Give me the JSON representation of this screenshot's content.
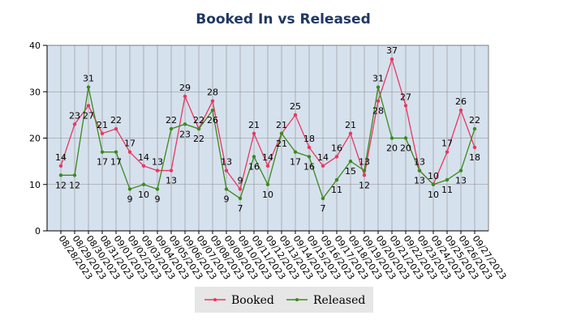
{
  "chart_data": {
    "type": "line",
    "title": "Booked In vs Released",
    "xlabel": "",
    "ylabel": "",
    "ylim": [
      0,
      40
    ],
    "yticks": [
      0,
      10,
      20,
      30,
      40
    ],
    "grid": true,
    "legend_position": "bottom",
    "categories": [
      "08/28/2023",
      "08/29/2023",
      "08/30/2023",
      "08/31/2023",
      "09/01/2023",
      "09/02/2023",
      "09/03/2023",
      "09/04/2023",
      "09/05/2023",
      "09/06/2023",
      "09/07/2023",
      "09/08/2023",
      "09/09/2023",
      "09/10/2023",
      "09/11/2023",
      "09/12/2023",
      "09/13/2023",
      "09/14/2023",
      "09/15/2023",
      "09/16/2023",
      "09/17/2023",
      "09/18/2023",
      "09/19/2023",
      "09/20/2023",
      "09/21/2023",
      "09/22/2023",
      "09/23/2023",
      "09/24/2023",
      "09/25/2023",
      "09/26/2023",
      "09/27/2023"
    ],
    "series": [
      {
        "name": "Booked",
        "color": "#e8375f",
        "values": [
          14,
          23,
          27,
          21,
          22,
          17,
          14,
          13,
          13,
          29,
          22,
          28,
          13,
          9,
          21,
          14,
          21,
          25,
          18,
          14,
          16,
          21,
          12,
          28,
          37,
          27,
          13,
          10,
          17,
          26,
          18
        ]
      },
      {
        "name": "Released",
        "color": "#3a8a1c",
        "values": [
          12,
          12,
          31,
          17,
          17,
          9,
          10,
          9,
          22,
          23,
          22,
          26,
          9,
          7,
          16,
          10,
          21,
          17,
          16,
          7,
          11,
          15,
          13,
          31,
          20,
          20,
          13,
          10,
          11,
          13,
          22
        ]
      }
    ]
  }
}
